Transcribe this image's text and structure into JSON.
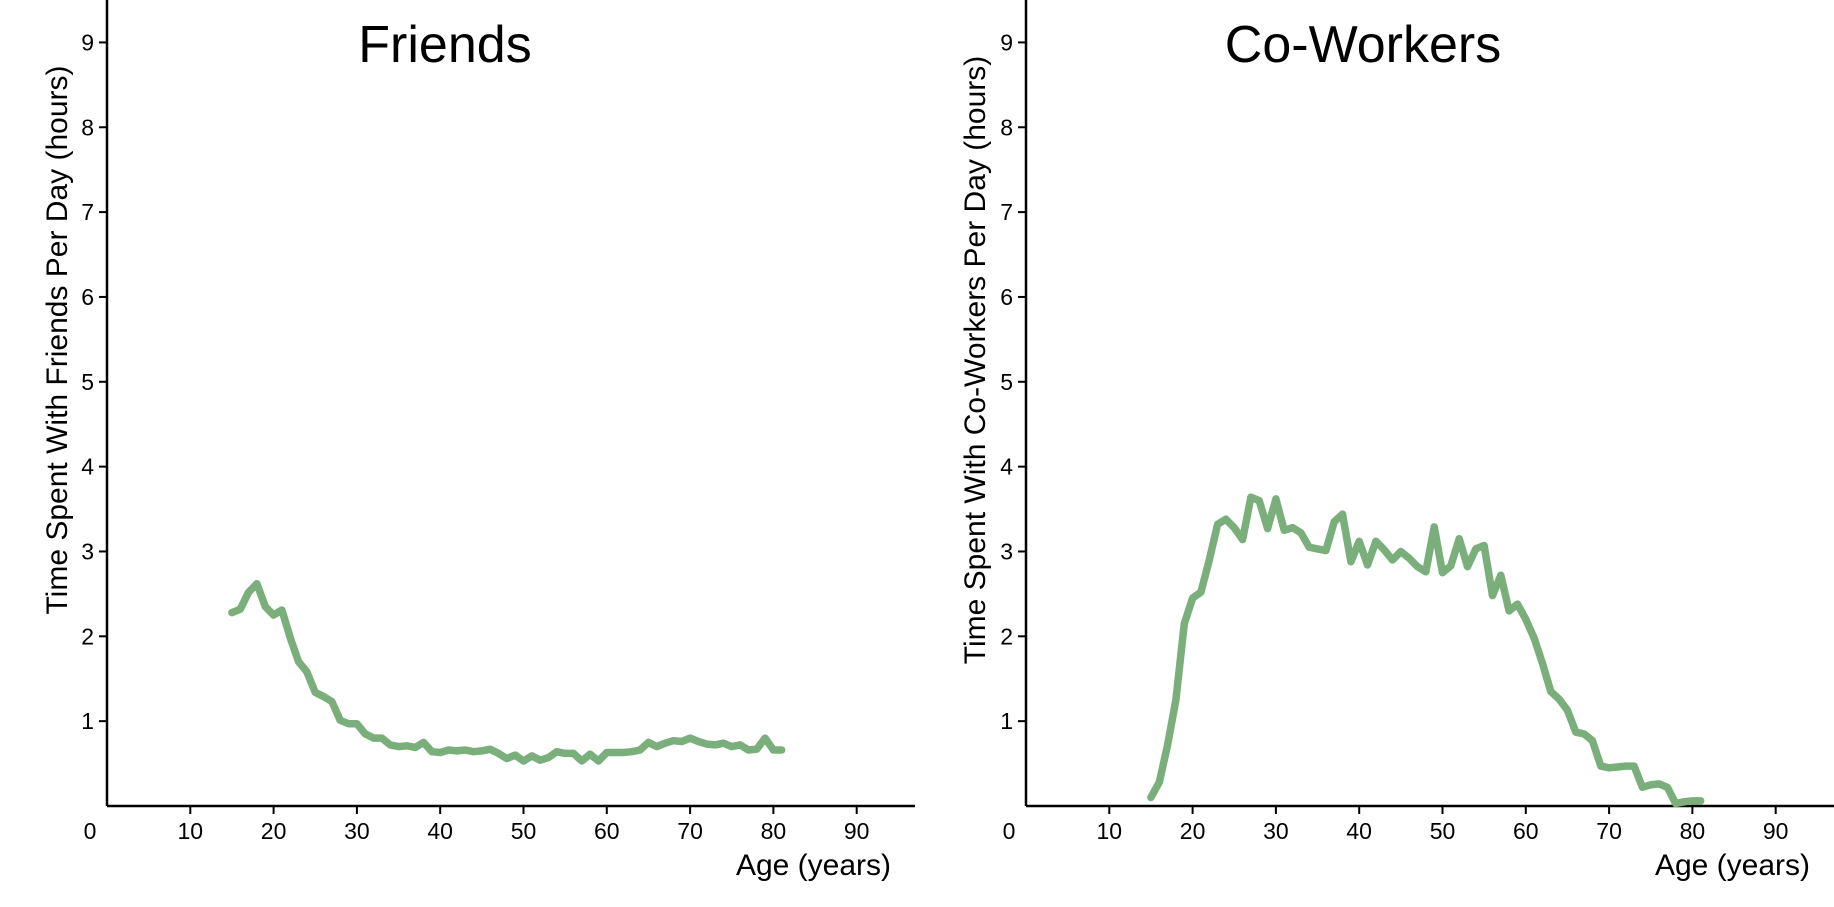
{
  "colors": {
    "series": "#7aaf7c"
  },
  "chart_data": [
    {
      "type": "line",
      "title": "Friends",
      "xlabel": "Age (years)",
      "ylabel": "Time Spent With Friends Per Day (hours)",
      "xlim": [
        0,
        97
      ],
      "ylim": [
        0,
        9.5
      ],
      "xticks": [
        0,
        10,
        20,
        30,
        40,
        50,
        60,
        70,
        80,
        90
      ],
      "yticks": [
        1,
        2,
        3,
        4,
        5,
        6,
        7,
        8,
        9
      ],
      "grid": false,
      "series": [
        {
          "x": [
            15,
            16,
            17,
            18,
            19,
            20,
            21,
            22,
            23,
            24,
            25,
            26,
            27,
            28,
            29,
            30,
            31,
            32,
            33,
            34,
            35,
            36,
            37,
            38,
            39,
            40,
            41,
            42,
            43,
            44,
            45,
            46,
            47,
            48,
            49,
            50,
            51,
            52,
            53,
            54,
            55,
            56,
            57,
            58,
            59,
            60,
            61,
            62,
            63,
            64,
            65,
            66,
            67,
            68,
            69,
            70,
            71,
            72,
            73,
            74,
            75,
            76,
            77,
            78,
            79,
            80,
            81
          ],
          "y": [
            2.28,
            2.32,
            2.52,
            2.62,
            2.35,
            2.25,
            2.31,
            1.98,
            1.7,
            1.58,
            1.34,
            1.29,
            1.23,
            1.01,
            0.97,
            0.97,
            0.85,
            0.8,
            0.8,
            0.72,
            0.7,
            0.71,
            0.69,
            0.75,
            0.64,
            0.63,
            0.66,
            0.65,
            0.66,
            0.64,
            0.65,
            0.67,
            0.62,
            0.56,
            0.6,
            0.53,
            0.59,
            0.54,
            0.57,
            0.64,
            0.62,
            0.62,
            0.53,
            0.61,
            0.53,
            0.63,
            0.63,
            0.63,
            0.64,
            0.66,
            0.75,
            0.7,
            0.74,
            0.77,
            0.76,
            0.8,
            0.76,
            0.73,
            0.72,
            0.74,
            0.7,
            0.72,
            0.66,
            0.67,
            0.8,
            0.66,
            0.66
          ]
        }
      ]
    },
    {
      "type": "line",
      "title": "Co-Workers",
      "xlabel": "Age (years)",
      "ylabel": "Time Spent With Co-Workers Per Day (hours)",
      "xlim": [
        0,
        97
      ],
      "ylim": [
        0,
        9.5
      ],
      "xticks": [
        0,
        10,
        20,
        30,
        40,
        50,
        60,
        70,
        80,
        90
      ],
      "yticks": [
        1,
        2,
        3,
        4,
        5,
        6,
        7,
        8,
        9
      ],
      "grid": false,
      "series": [
        {
          "x": [
            15,
            16,
            17,
            18,
            19,
            20,
            21,
            22,
            23,
            24,
            25,
            26,
            27,
            28,
            29,
            30,
            31,
            32,
            33,
            34,
            35,
            36,
            37,
            38,
            39,
            40,
            41,
            42,
            43,
            44,
            45,
            46,
            47,
            48,
            49,
            50,
            51,
            52,
            53,
            54,
            55,
            56,
            57,
            58,
            59,
            60,
            61,
            62,
            63,
            64,
            65,
            66,
            67,
            68,
            69,
            70,
            71,
            72,
            73,
            74,
            75,
            76,
            77,
            78,
            79,
            80,
            81
          ],
          "y": [
            0.1,
            0.28,
            0.72,
            1.25,
            2.15,
            2.45,
            2.52,
            2.9,
            3.32,
            3.38,
            3.28,
            3.14,
            3.64,
            3.6,
            3.27,
            3.62,
            3.25,
            3.28,
            3.22,
            3.05,
            3.03,
            3.01,
            3.35,
            3.44,
            2.88,
            3.12,
            2.84,
            3.12,
            3.02,
            2.9,
            3.0,
            2.92,
            2.82,
            2.76,
            3.29,
            2.75,
            2.83,
            3.15,
            2.82,
            3.03,
            3.07,
            2.48,
            2.72,
            2.3,
            2.38,
            2.2,
            1.98,
            1.68,
            1.35,
            1.26,
            1.13,
            0.87,
            0.85,
            0.77,
            0.47,
            0.45,
            0.46,
            0.47,
            0.47,
            0.22,
            0.25,
            0.26,
            0.22,
            0.03,
            0.05,
            0.06,
            0.06
          ]
        }
      ]
    }
  ]
}
